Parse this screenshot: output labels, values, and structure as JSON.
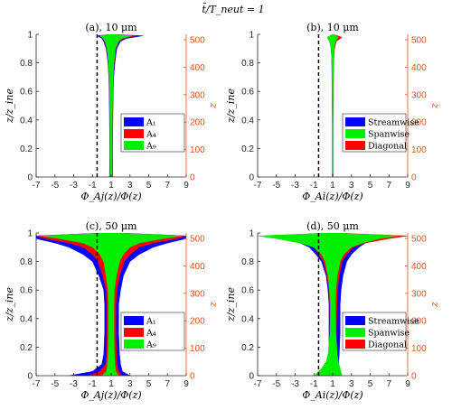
{
  "figure": {
    "suptitle": "t̄/T_neut = 1",
    "colors": {
      "blue": "#0000ff",
      "red": "#ff0000",
      "green": "#00ee00",
      "right_axis": "#d95319",
      "axis": "#262626"
    }
  },
  "chart_data": [
    {
      "id": "a",
      "type": "area",
      "title": "(a), 10 μm",
      "xlabel": "Φ_Aj(z)/Φ(z)",
      "ylabel": "z/z_ine",
      "ylabel_right": "z",
      "xlim": [
        -7,
        9
      ],
      "ylim": [
        0,
        1
      ],
      "ylim_right": [
        0,
        520
      ],
      "xticks": [
        "-7",
        "-5",
        "-3",
        "-1",
        "1",
        "3",
        "5",
        "7",
        "9"
      ],
      "yticks": [
        "0",
        "0.2",
        "0.4",
        "0.6",
        "0.8",
        "1"
      ],
      "yticks_right": [
        "0",
        "100",
        "200",
        "300",
        "400",
        "500"
      ],
      "vline_dashed_x": -0.5,
      "legend": [
        "A₁",
        "A₄",
        "A₉"
      ],
      "series": [
        {
          "name": "A₁",
          "color": "blue",
          "z": [
            0,
            0.2,
            0.4,
            0.6,
            0.7,
            0.8,
            0.9,
            0.95,
            0.97,
            0.99,
            1.0
          ],
          "left": [
            0.82,
            0.85,
            0.82,
            0.78,
            0.74,
            0.65,
            0.45,
            0.2,
            0.0,
            -0.5,
            0.9
          ],
          "right": [
            1.18,
            1.15,
            1.18,
            1.22,
            1.28,
            1.4,
            1.6,
            2.0,
            2.6,
            4.4,
            1.1
          ]
        },
        {
          "name": "A₄",
          "color": "red",
          "z": [
            0,
            0.2,
            0.4,
            0.6,
            0.7,
            0.8,
            0.9,
            0.95,
            0.97,
            0.99,
            1.0
          ],
          "left": [
            0.85,
            0.87,
            0.85,
            0.81,
            0.77,
            0.7,
            0.52,
            0.3,
            0.1,
            -0.3,
            0.92
          ],
          "right": [
            1.15,
            1.13,
            1.15,
            1.19,
            1.24,
            1.33,
            1.5,
            1.85,
            2.3,
            3.7,
            1.08
          ]
        },
        {
          "name": "A₉",
          "color": "green",
          "z": [
            0,
            0.2,
            0.4,
            0.6,
            0.7,
            0.8,
            0.9,
            0.95,
            0.97,
            0.99,
            1.0
          ],
          "left": [
            0.88,
            0.89,
            0.87,
            0.83,
            0.79,
            0.72,
            0.55,
            0.35,
            0.15,
            -0.2,
            0.93
          ],
          "right": [
            1.12,
            1.11,
            1.13,
            1.17,
            1.22,
            1.3,
            1.45,
            1.75,
            2.1,
            3.2,
            1.07
          ]
        }
      ]
    },
    {
      "id": "b",
      "type": "area",
      "title": "(b), 10 μm",
      "xlabel": "Φ_Ai(z)/Φ(z)",
      "ylabel": "z/z_ine",
      "ylabel_right": "z",
      "xlim": [
        -7,
        9
      ],
      "ylim": [
        0,
        1
      ],
      "ylim_right": [
        0,
        520
      ],
      "xticks": [
        "-7",
        "-5",
        "-3",
        "-1",
        "1",
        "3",
        "5",
        "7",
        "9"
      ],
      "yticks": [
        "0",
        "0.2",
        "0.4",
        "0.6",
        "0.8",
        "1"
      ],
      "yticks_right": [
        "0",
        "100",
        "200",
        "300",
        "400",
        "500"
      ],
      "vline_dashed_x": -0.5,
      "legend": [
        "Streamwise",
        "Spanwise",
        "Diagonal"
      ],
      "series": [
        {
          "name": "Streamwise",
          "color": "blue",
          "z": [
            0,
            0.4,
            0.8,
            0.9,
            0.95,
            0.98,
            1.0
          ],
          "left": [
            0.95,
            0.95,
            0.9,
            0.85,
            0.75,
            0.55,
            0.95
          ],
          "right": [
            1.05,
            1.05,
            1.1,
            1.15,
            1.25,
            1.5,
            1.05
          ]
        },
        {
          "name": "Diagonal",
          "color": "red",
          "z": [
            0,
            0.4,
            0.8,
            0.9,
            0.95,
            0.98,
            1.0
          ],
          "left": [
            0.97,
            0.97,
            0.92,
            0.85,
            0.78,
            0.6,
            0.97
          ],
          "right": [
            1.03,
            1.03,
            1.1,
            1.2,
            1.4,
            2.0,
            1.03
          ]
        },
        {
          "name": "Spanwise",
          "color": "green",
          "z": [
            0,
            0.4,
            0.8,
            0.9,
            0.95,
            0.98,
            1.0
          ],
          "left": [
            0.98,
            0.97,
            0.92,
            0.82,
            0.65,
            0.4,
            0.97
          ],
          "right": [
            1.02,
            1.03,
            1.08,
            1.15,
            1.3,
            1.6,
            1.03
          ]
        }
      ]
    },
    {
      "id": "c",
      "type": "area",
      "title": "(c), 50 μm",
      "xlabel": "Φ_Aj(z)/Φ(z)",
      "ylabel": "z/z_ine",
      "ylabel_right": "z",
      "xlim": [
        -7,
        9
      ],
      "ylim": [
        0,
        1
      ],
      "ylim_right": [
        0,
        520
      ],
      "xticks": [
        "-7",
        "-5",
        "-3",
        "-1",
        "1",
        "3",
        "5",
        "7",
        "9"
      ],
      "yticks": [
        "0",
        "0.2",
        "0.4",
        "0.6",
        "0.8",
        "1"
      ],
      "yticks_right": [
        "0",
        "100",
        "200",
        "300",
        "400",
        "500"
      ],
      "vline_dashed_x": -0.5,
      "legend": [
        "A₁",
        "A₄",
        "A₉"
      ],
      "series": [
        {
          "name": "A₁",
          "color": "blue",
          "z": [
            0,
            0.03,
            0.08,
            0.15,
            0.3,
            0.5,
            0.6,
            0.7,
            0.8,
            0.85,
            0.9,
            0.93,
            0.96,
            0.98,
            1.0
          ],
          "left": [
            -3.5,
            -1.0,
            0.0,
            0.2,
            0.3,
            0.3,
            0.2,
            -0.3,
            -1.0,
            -2.0,
            -3.5,
            -5.0,
            -7.0,
            -7.0,
            0.0
          ],
          "right": [
            3.0,
            2.2,
            2.0,
            1.9,
            1.8,
            1.8,
            2.0,
            2.3,
            3.0,
            4.0,
            5.5,
            7.0,
            9.0,
            9.0,
            2.0
          ]
        },
        {
          "name": "A₄",
          "color": "red",
          "z": [
            0,
            0.03,
            0.08,
            0.15,
            0.3,
            0.5,
            0.6,
            0.7,
            0.8,
            0.85,
            0.9,
            0.93,
            0.96,
            0.98,
            1.0
          ],
          "left": [
            -1.5,
            -0.2,
            0.4,
            0.5,
            0.55,
            0.55,
            0.45,
            0.1,
            -0.4,
            -1.0,
            -2.0,
            -3.5,
            -6.0,
            -7.0,
            0.3
          ],
          "right": [
            2.2,
            1.8,
            1.6,
            1.55,
            1.5,
            1.5,
            1.6,
            1.9,
            2.4,
            3.0,
            4.0,
            5.5,
            8.0,
            9.0,
            1.7
          ]
        },
        {
          "name": "A₉",
          "color": "green",
          "z": [
            0,
            0.03,
            0.08,
            0.15,
            0.3,
            0.5,
            0.6,
            0.7,
            0.8,
            0.85,
            0.9,
            0.93,
            0.96,
            0.98,
            1.0
          ],
          "left": [
            0.0,
            0.5,
            0.6,
            0.65,
            0.7,
            0.7,
            0.65,
            0.45,
            0.2,
            -0.2,
            -1.0,
            -2.0,
            -4.5,
            -6.5,
            0.5
          ],
          "right": [
            1.8,
            1.5,
            1.4,
            1.35,
            1.3,
            1.3,
            1.35,
            1.55,
            1.9,
            2.3,
            3.0,
            4.0,
            6.5,
            8.5,
            1.5
          ]
        }
      ]
    },
    {
      "id": "d",
      "type": "area",
      "title": "(d), 50 μm",
      "xlabel": "Φ_Ai(z)/Φ(z)",
      "ylabel": "z/z_ine",
      "ylabel_right": "z",
      "xlim": [
        -7,
        9
      ],
      "ylim": [
        0,
        1
      ],
      "ylim_right": [
        0,
        520
      ],
      "xticks": [
        "-7",
        "-5",
        "-3",
        "-1",
        "1",
        "3",
        "5",
        "7",
        "9"
      ],
      "yticks": [
        "0",
        "0.2",
        "0.4",
        "0.6",
        "0.8",
        "1"
      ],
      "yticks_right": [
        "0",
        "100",
        "200",
        "300",
        "400",
        "500"
      ],
      "vline_dashed_x": -0.5,
      "legend": [
        "Streamwise",
        "Spanwise",
        "Diagonal"
      ],
      "series": [
        {
          "name": "Streamwise",
          "color": "blue",
          "z": [
            0,
            0.05,
            0.15,
            0.3,
            0.5,
            0.6,
            0.7,
            0.8,
            0.85,
            0.9,
            0.93,
            0.96,
            0.98,
            1.0
          ],
          "left": [
            0.4,
            0.5,
            0.6,
            0.6,
            0.6,
            0.5,
            0.3,
            -0.2,
            -0.8,
            -1.5,
            -2.5,
            -4.0,
            -5.5,
            0.4
          ],
          "right": [
            1.6,
            1.6,
            1.7,
            1.8,
            1.8,
            1.9,
            2.1,
            2.5,
            3.0,
            3.8,
            4.5,
            6.0,
            7.0,
            1.6
          ]
        },
        {
          "name": "Diagonal",
          "color": "red",
          "z": [
            0,
            0.05,
            0.15,
            0.3,
            0.5,
            0.6,
            0.7,
            0.8,
            0.85,
            0.9,
            0.93,
            0.96,
            0.98,
            1.0
          ],
          "left": [
            0.5,
            0.6,
            0.7,
            0.7,
            0.7,
            0.6,
            0.4,
            0.0,
            -0.5,
            -1.0,
            -2.0,
            -4.0,
            -6.0,
            0.6
          ],
          "right": [
            1.5,
            1.5,
            1.4,
            1.4,
            1.45,
            1.5,
            1.7,
            2.0,
            2.5,
            3.2,
            4.5,
            7.0,
            9.0,
            1.5
          ]
        },
        {
          "name": "Spanwise",
          "color": "green",
          "z": [
            0,
            0.05,
            0.1,
            0.15,
            0.3,
            0.5,
            0.6,
            0.7,
            0.8,
            0.85,
            0.9,
            0.93,
            0.96,
            0.98,
            1.0
          ],
          "left": [
            -1.0,
            -0.2,
            0.3,
            0.5,
            0.7,
            0.75,
            0.65,
            0.5,
            0.2,
            -0.2,
            -1.0,
            -2.5,
            -5.0,
            -7.0,
            0.7
          ],
          "right": [
            2.0,
            1.8,
            1.6,
            1.5,
            1.35,
            1.3,
            1.35,
            1.5,
            1.8,
            2.2,
            3.0,
            4.2,
            6.0,
            8.0,
            1.4
          ]
        }
      ]
    }
  ]
}
